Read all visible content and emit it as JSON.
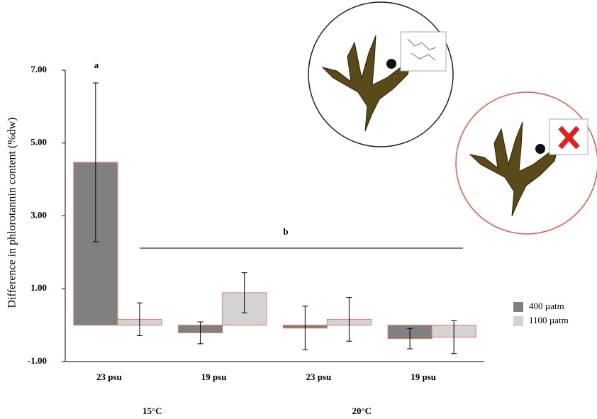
{
  "chart_data": {
    "type": "bar",
    "y_label": "Difference in phlorotannin content (%dw)",
    "categories": [
      "23 psu",
      "19 psu",
      "23 psu",
      "19 psu"
    ],
    "groups": [
      {
        "label": "15°C",
        "span": 2
      },
      {
        "label": "20°C",
        "span": 2
      }
    ],
    "series": [
      {
        "name": "400 µatm",
        "color": "#808080",
        "values": [
          4.47,
          -0.21,
          -0.08,
          -0.37
        ],
        "errors": [
          2.18,
          0.3,
          0.6,
          0.28
        ]
      },
      {
        "name": "1100 µatm",
        "color": "#d3d3d3",
        "values": [
          0.16,
          0.89,
          0.16,
          -0.33
        ],
        "errors": [
          0.45,
          0.55,
          0.6,
          0.45
        ]
      }
    ],
    "annotations": [
      "a",
      "b"
    ],
    "ylim": [
      -1,
      7
    ],
    "yticks": [
      {
        "value": -1,
        "label": "-1.00"
      },
      {
        "value": 1,
        "label": "1.00"
      },
      {
        "value": 3,
        "label": "3.00"
      },
      {
        "value": 5,
        "label": "5.00"
      },
      {
        "value": 7,
        "label": "7.00"
      }
    ],
    "legend": "right"
  }
}
